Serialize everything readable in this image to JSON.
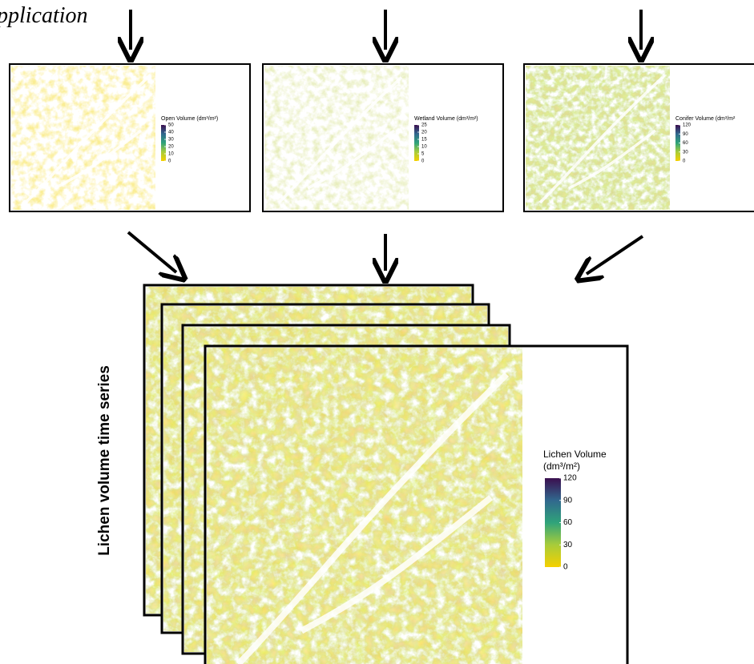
{
  "heading": "pplication",
  "panels": [
    {
      "legend_title": "Open Volume (dm³/m²)",
      "ticks": [
        50,
        40,
        30,
        20,
        10,
        0
      ]
    },
    {
      "legend_title": "Wetland Volume (dm³/m²)",
      "ticks": [
        25,
        20,
        15,
        10,
        5,
        0
      ]
    },
    {
      "legend_title": "Conifer Volume (dm³/m²",
      "ticks": [
        120,
        90,
        60,
        30,
        0
      ]
    }
  ],
  "main": {
    "side_label": "Lichen volume time series",
    "legend_title_line1": "Lichen Volume",
    "legend_title_line2": "(dm³/m²)",
    "ticks": [
      120,
      90,
      60,
      30,
      0
    ]
  }
}
